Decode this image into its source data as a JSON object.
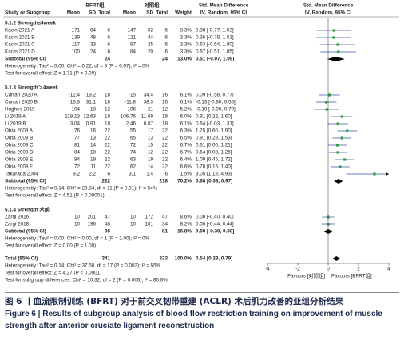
{
  "chart_data": {
    "type": "forest",
    "headers": {
      "bfrt": "BFRT组",
      "ctrl": "对照组",
      "smd_text": "Std. Mean Difference",
      "smd_plot": "Std. Mean Difference",
      "study": "Study or Subgroup",
      "cols": [
        "Mean",
        "SD",
        "Total",
        "Mean",
        "SD",
        "Total"
      ],
      "weight": "Weight",
      "method_text": "IV, Random, 95% CI",
      "method_plot": "IV, Random, 95% CI"
    },
    "groups": [
      {
        "title": "5.1.2 Strength≤4week",
        "rows": [
          {
            "study": "Kacin 2021 A",
            "cells": [
              "171",
              "64",
              "6",
              "147",
              "52",
              "6"
            ],
            "weight": "3.3%",
            "ci": "0.38 [-0.77, 1.53]",
            "smd": 0.38,
            "lo": -0.77,
            "hi": 1.53
          },
          {
            "study": "Kacin 2021 B",
            "cells": [
              "139",
              "48",
              "6",
              "121",
              "44",
              "6"
            ],
            "weight": "3.3%",
            "ci": "0.36 [-0.78, 1.51]",
            "smd": 0.36,
            "lo": -0.78,
            "hi": 1.51
          },
          {
            "study": "Kacin 2021 C",
            "cells": [
              "117",
              "33",
              "6",
              "97",
              "25",
              "6"
            ],
            "weight": "3.3%",
            "ci": "0.63 [-0.54, 1.80]",
            "smd": 0.63,
            "lo": -0.54,
            "hi": 1.8
          },
          {
            "study": "Kacin 2021 D",
            "cells": [
              "100",
              "24",
              "6",
              "84",
              "20",
              "6"
            ],
            "weight": "3.3%",
            "ci": "0.67 [-0.51, 1.85]",
            "smd": 0.67,
            "lo": -0.51,
            "hi": 1.85
          }
        ],
        "subtotal": {
          "label": "Subtotal (95% CI)",
          "n_bfrt": "24",
          "n_ctrl": "24",
          "weight": "13.0%",
          "ci": "0.51 [-0.07, 1.09]",
          "smd": 0.51,
          "lo": -0.07,
          "hi": 1.09
        },
        "heterogeneity": "Heterogeneity: Tau² = 0.00; Chi² = 0.22, df = 3 (P = 0.97); I² = 0%",
        "overall": "Test for overall effect: Z = 1.71 (P = 0.09)"
      },
      {
        "title": "5.1.3 Strength＞4week",
        "rows": [
          {
            "study": "Curran 2020 A",
            "cells": [
              "-12.4",
              "19.2",
              "18",
              "-15",
              "34.4",
              "16"
            ],
            "weight": "6.1%",
            "ci": "0.09 [-0.58, 0.77]",
            "smd": 0.09,
            "lo": -0.58,
            "hi": 0.77
          },
          {
            "study": "Curran 2020 B",
            "cells": [
              "-16.3",
              "31.1",
              "18",
              "-11.8",
              "38.3",
              "16"
            ],
            "weight": "6.1%",
            "ci": "-0.13 [-0.80, 0.55]",
            "smd": -0.13,
            "lo": -0.8,
            "hi": 0.55
          },
          {
            "study": "Hughes 2019",
            "cells": [
              "104",
              "18",
              "12",
              "106",
              "21",
              "12"
            ],
            "weight": "5.2%",
            "ci": "-0.10 [-0.90, 0.70]",
            "smd": -0.1,
            "lo": -0.9,
            "hi": 0.7
          },
          {
            "study": "Li 2019 A",
            "cells": [
              "118.13",
              "12.63",
              "18",
              "106.76",
              "11.69",
              "18"
            ],
            "weight": "6.0%",
            "ci": "0.91 [0.22, 1.60]",
            "smd": 0.91,
            "lo": 0.22,
            "hi": 1.6
          },
          {
            "study": "Li 2019 B",
            "cells": [
              "3.04",
              "0.91",
              "18",
              "2.46",
              "0.87",
              "18"
            ],
            "weight": "6.1%",
            "ci": "0.64 [-0.03, 1.31]",
            "smd": 0.64,
            "lo": -0.03,
            "hi": 1.31
          },
          {
            "study": "Ohta 2003 A",
            "cells": [
              "76",
              "16",
              "22",
              "55",
              "17",
              "22"
            ],
            "weight": "6.3%",
            "ci": "1.25 [0.60, 1.90]",
            "smd": 1.25,
            "lo": 0.6,
            "hi": 1.9
          },
          {
            "study": "Ohta 2003 B",
            "cells": [
              "77",
              "13",
              "22",
              "65",
              "13",
              "22"
            ],
            "weight": "6.5%",
            "ci": "0.91 [0.28, 1.53]",
            "smd": 0.91,
            "lo": 0.28,
            "hi": 1.53
          },
          {
            "study": "Ohta 2003 C",
            "cells": [
              "81",
              "14",
              "22",
              "72",
              "15",
              "22"
            ],
            "weight": "6.7%",
            "ci": "0.61 [0.00, 1.21]",
            "smd": 0.61,
            "lo": 0,
            "hi": 1.21
          },
          {
            "study": "Ohta 2003 D",
            "cells": [
              "84",
              "18",
              "22",
              "74",
              "12",
              "22"
            ],
            "weight": "6.7%",
            "ci": "0.64 [0.03, 1.25]",
            "smd": 0.64,
            "lo": 0.03,
            "hi": 1.25
          },
          {
            "study": "Ohta 2003 E",
            "cells": [
              "84",
              "19",
              "22",
              "63",
              "19",
              "22"
            ],
            "weight": "6.4%",
            "ci": "1.09 [0.45, 1.72]",
            "smd": 1.09,
            "lo": 0.45,
            "hi": 1.72
          },
          {
            "study": "Ohta 2003 F",
            "cells": [
              "72",
              "11",
              "22",
              "62",
              "14",
              "22"
            ],
            "weight": "6.6%",
            "ci": "0.78 [0.16, 1.40]",
            "smd": 0.78,
            "lo": 0.16,
            "hi": 1.4
          },
          {
            "study": "Takarada 2004",
            "cells": [
              "9.2",
              "2.2",
              "6",
              "3.1",
              "1.4",
              "6"
            ],
            "weight": "1.5%",
            "ci": "3.05 [1.18, 4.93]",
            "smd": 3.05,
            "lo": 1.18,
            "hi": 4.93
          }
        ],
        "subtotal": {
          "label": "Subtotal (95% CI)",
          "n_bfrt": "222",
          "n_ctrl": "218",
          "weight": "70.2%",
          "ci": "0.68 [0.38, 0.97]",
          "smd": 0.68,
          "lo": 0.38,
          "hi": 0.97
        },
        "heterogeneity": "Heterogeneity: Tau² = 0.14; Chi² = 23.84, df = 11 (P = 0.01); I² = 54%",
        "overall": "Test for overall effect: Z = 4.51 (P < 0.00001)"
      },
      {
        "title": "5.1.4 Strength 术前",
        "rows": [
          {
            "study": "Zargi 2016",
            "cells": [
              "10",
              "201",
              "47",
              "10",
              "172",
              "47"
            ],
            "weight": "8.6%",
            "ci": "0.00 [-0.40, 0.40]",
            "smd": 0,
            "lo": -0.4,
            "hi": 0.4
          },
          {
            "study": "Zargi 2018",
            "cells": [
              "10",
              "196",
              "48",
              "10",
              "181",
              "34"
            ],
            "weight": "8.2%",
            "ci": "0.00 [-0.44, 0.44]",
            "smd": 0,
            "lo": -0.44,
            "hi": 0.44
          }
        ],
        "subtotal": {
          "label": "Subtotal (95% CI)",
          "n_bfrt": "95",
          "n_ctrl": "81",
          "weight": "16.8%",
          "ci": "0.00 [-0.30, 0.30]",
          "smd": 0,
          "lo": -0.3,
          "hi": 0.3
        },
        "heterogeneity": "Heterogeneity: Tau² = 0.00; Chi² = 0.00, df = 1 (P = 1.00); I² = 0%",
        "overall": "Test for overall effect: Z = 0.00 (P = 1.00)"
      }
    ],
    "total": {
      "label": "Total (95% CI)",
      "n_bfrt": "341",
      "n_ctrl": "323",
      "weight": "100.0%",
      "ci": "0.54 [0.29, 0.79]",
      "smd": 0.54,
      "lo": 0.29,
      "hi": 0.79
    },
    "total_heterogeneity": "Heterogeneity: Tau² = 0.14; Chi² = 37.58, df = 17 (P = 0.003); I² = 55%",
    "total_overall": "Test for overall effect: Z = 4.27 (P < 0.0001)",
    "subgroup_differences": "Test for subgroup differences: Chi² = 10.32, df = 2 (P = 0.006), I² = 80.6%",
    "xlim": [
      -4,
      4
    ],
    "xticks": [
      -4,
      -2,
      0,
      2,
      4
    ],
    "favours_left": "Favours [对照组]",
    "favours_right": "Favours [BFRT组]",
    "color": "#2e9e3e",
    "line_color": "#3455a4"
  },
  "caption": {
    "cn": "图 6 丨血流限制训练 (BFRT) 对于前交叉韧带重建 (ACLR) 术后肌力改善的亚组分析结果",
    "en": "Figure 6 | Results of subgroup analysis of blood flow restriction training on improvement of muscle strength after anterior cruciate ligament reconstruction"
  }
}
